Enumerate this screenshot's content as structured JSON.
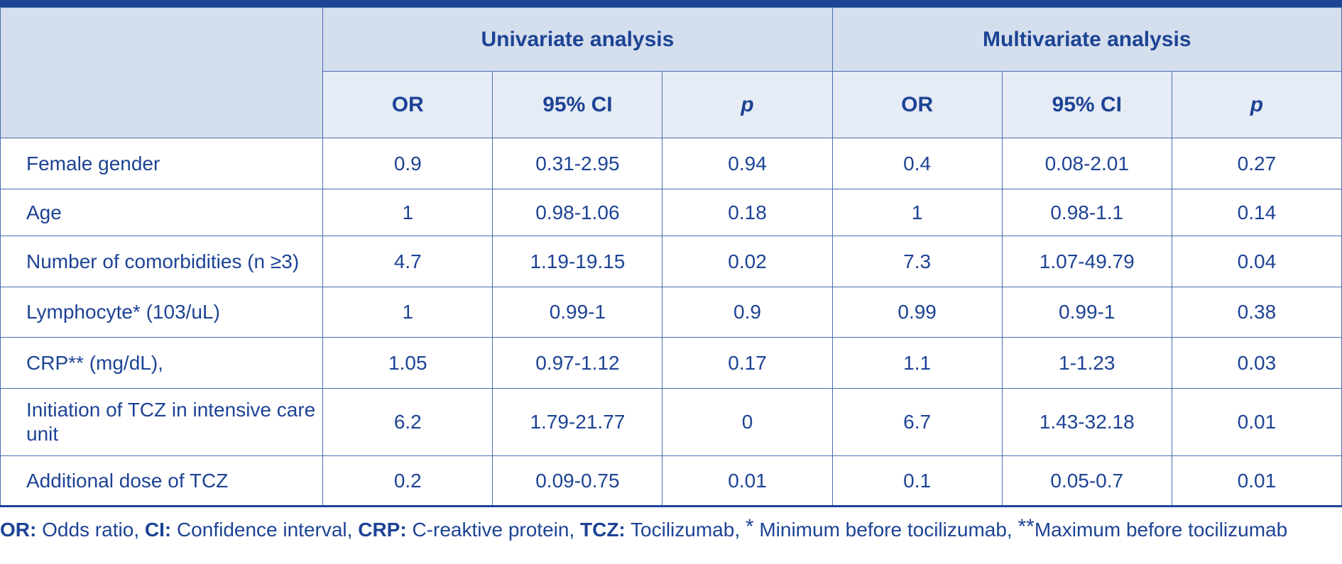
{
  "header": {
    "groups": [
      "Univariate analysis",
      "Multivariate analysis"
    ],
    "subcols": [
      "OR",
      "95% CI",
      "p",
      "OR",
      "95% CI",
      "p"
    ]
  },
  "rows": [
    {
      "label": "Female gender",
      "u_or": "0.9",
      "u_ci": "0.31-2.95",
      "u_p": "0.94",
      "m_or": "0.4",
      "m_ci": "0.08-2.01",
      "m_p": "0.27"
    },
    {
      "label": "Age",
      "u_or": "1",
      "u_ci": "0.98-1.06",
      "u_p": "0.18",
      "m_or": "1",
      "m_ci": "0.98-1.1",
      "m_p": "0.14"
    },
    {
      "label": "Number of comorbidities (n ≥3)",
      "u_or": "4.7",
      "u_ci": "1.19-19.15",
      "u_p": "0.02",
      "m_or": "7.3",
      "m_ci": "1.07-49.79",
      "m_p": "0.04"
    },
    {
      "label": "Lymphocyte* (103/uL)",
      "u_or": "1",
      "u_ci": "0.99-1",
      "u_p": "0.9",
      "m_or": "0.99",
      "m_ci": "0.99-1",
      "m_p": "0.38"
    },
    {
      "label": "CRP** (mg/dL),",
      "u_or": "1.05",
      "u_ci": "0.97-1.12",
      "u_p": "0.17",
      "m_or": "1.1",
      "m_ci": "1-1.23",
      "m_p": "0.03"
    },
    {
      "label": "Initiation of TCZ in intensive care unit",
      "u_or": "6.2",
      "u_ci": "1.79-21.77",
      "u_p": "0",
      "m_or": "6.7",
      "m_ci": "1.43-32.18",
      "m_p": "0.01"
    },
    {
      "label": "Additional dose of TCZ",
      "u_or": "0.2",
      "u_ci": "0.09-0.75",
      "u_p": "0.01",
      "m_or": "0.1",
      "m_ci": "0.05-0.7",
      "m_p": "0.01"
    }
  ],
  "footnote": {
    "or_abbr": "OR:",
    "or_text": " Odds ratio, ",
    "ci_abbr": "CI:",
    "ci_text": " Confidence interval, ",
    "crp_abbr": "CRP:",
    "crp_text": " C-reaktive protein, ",
    "tcz_abbr": "TCZ:",
    "tcz_text": " Tocilizumab, ",
    "star1": "*",
    "star1_text": " Minimum before tocilizumab, ",
    "star2": "**",
    "star2_text": "Maximum before tocilizumab"
  },
  "colors": {
    "text": "#1d4394",
    "header_dark": "#d4deed",
    "header_light": "#e6ecf6",
    "border": "#4a6bb0"
  }
}
